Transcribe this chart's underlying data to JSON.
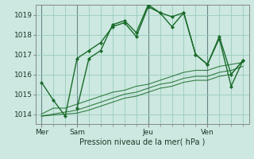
{
  "background_color": "#cce8e0",
  "grid_color": "#99ccbb",
  "line_color": "#1a6b2a",
  "title": "Pression niveau de la mer( hPa )",
  "ylim": [
    1013.5,
    1019.5
  ],
  "yticks": [
    1014,
    1015,
    1016,
    1017,
    1018,
    1019
  ],
  "day_labels": [
    "Mer",
    "Sam",
    "Jeu",
    "Ven"
  ],
  "day_positions": [
    0,
    3,
    9,
    14
  ],
  "xlim": [
    -0.5,
    17.5
  ],
  "series1_x": [
    0,
    1,
    2,
    3,
    4,
    5,
    6,
    7,
    8,
    9,
    10,
    11,
    12,
    13,
    14,
    15,
    16,
    17
  ],
  "series1_y": [
    1015.6,
    1014.7,
    1013.9,
    1016.8,
    1017.2,
    1017.6,
    1018.4,
    1018.6,
    1017.9,
    1019.4,
    1019.1,
    1018.9,
    1019.1,
    1017.0,
    1016.5,
    1017.8,
    1015.4,
    1016.7
  ],
  "series2_x": [
    0,
    1,
    2,
    3,
    4,
    5,
    6,
    7,
    8,
    9,
    10,
    11,
    12,
    13,
    14,
    15,
    16,
    17
  ],
  "series2_y": [
    1014.0,
    1014.3,
    1014.3,
    1014.5,
    1014.7,
    1014.9,
    1015.1,
    1015.2,
    1015.4,
    1015.5,
    1015.7,
    1015.9,
    1016.1,
    1016.2,
    1016.2,
    1016.4,
    1016.5,
    1016.6
  ],
  "series3_x": [
    0,
    1,
    2,
    3,
    4,
    5,
    6,
    7,
    8,
    9,
    10,
    11,
    12,
    13,
    14,
    15,
    16,
    17
  ],
  "series3_y": [
    1013.9,
    1014.0,
    1014.1,
    1014.2,
    1014.4,
    1014.6,
    1014.8,
    1015.0,
    1015.1,
    1015.3,
    1015.5,
    1015.6,
    1015.8,
    1015.9,
    1015.9,
    1016.1,
    1016.2,
    1016.4
  ],
  "series4_x": [
    0,
    1,
    2,
    3,
    4,
    5,
    6,
    7,
    8,
    9,
    10,
    11,
    12,
    13,
    14,
    15,
    16,
    17
  ],
  "series4_y": [
    1013.9,
    1013.95,
    1014.0,
    1014.05,
    1014.2,
    1014.4,
    1014.6,
    1014.8,
    1014.9,
    1015.1,
    1015.3,
    1015.4,
    1015.6,
    1015.7,
    1015.7,
    1015.9,
    1016.0,
    1016.7
  ],
  "series5_x": [
    3,
    4,
    5,
    6,
    7,
    8,
    9,
    10,
    11,
    12,
    13,
    14,
    15,
    16,
    17
  ],
  "series5_y": [
    1014.3,
    1016.8,
    1017.2,
    1018.5,
    1018.7,
    1018.1,
    1019.5,
    1019.1,
    1018.4,
    1019.1,
    1017.0,
    1016.5,
    1017.9,
    1016.0,
    1016.7
  ]
}
